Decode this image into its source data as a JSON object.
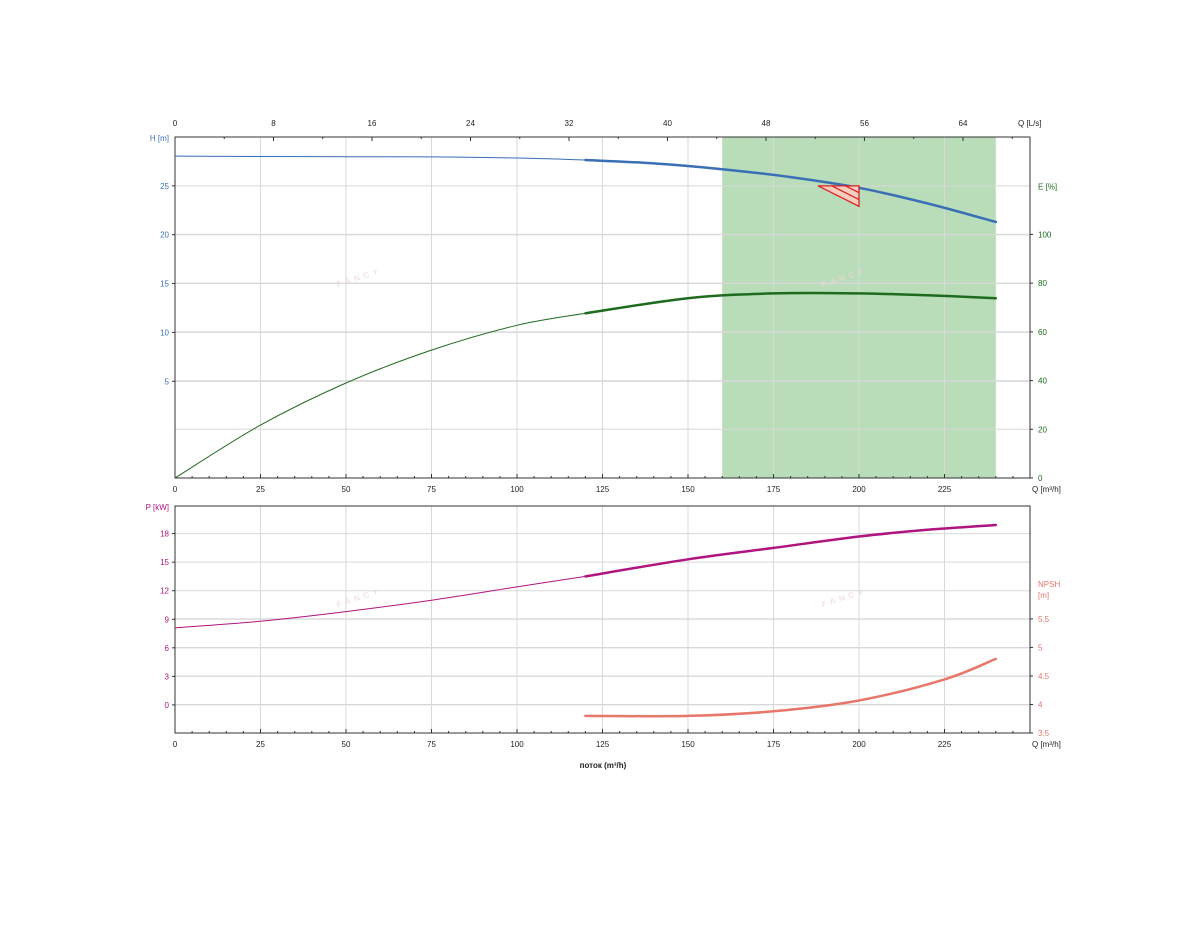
{
  "watermark": "FANCY",
  "colors": {
    "head": "#3a6fb5",
    "efficiency": "#1e6b1e",
    "power": "#b0147f",
    "npsh": "#e8766a",
    "band": "#b9dcb9",
    "operating_point": "#e02020",
    "grid": "#d8d8d8",
    "axis": "#333333"
  },
  "chart_data": [
    {
      "type": "line",
      "panel": "top",
      "xlabel": "Q [m³/h]",
      "xlim": [
        0,
        250
      ],
      "xticks": [
        0,
        25,
        50,
        75,
        100,
        125,
        150,
        175,
        200,
        225
      ],
      "x2label": "Q [L/s]",
      "x2ticks": [
        0,
        8,
        16,
        24,
        32,
        40,
        48,
        56,
        64
      ],
      "ylabel": "H [m]",
      "ylim": [
        -4.9,
        30
      ],
      "yticks": [
        5,
        10,
        15,
        20,
        25
      ],
      "y2label": "E [%]",
      "y2lim": [
        0,
        140
      ],
      "y2ticks": [
        0,
        20,
        40,
        60,
        80,
        100
      ],
      "grid": true,
      "recommended_range": [
        160,
        240
      ],
      "operating_point": {
        "q": 200,
        "h": 25,
        "q_min": 188,
        "h_min": 22.9
      },
      "series": [
        {
          "key": "head",
          "axis": "left",
          "x": [
            0,
            25,
            50,
            75,
            100,
            120,
            140,
            160,
            180,
            200,
            220,
            240
          ],
          "y": [
            28.05,
            28.0,
            27.98,
            27.96,
            27.85,
            27.65,
            27.3,
            26.7,
            25.9,
            24.8,
            23.2,
            21.3
          ],
          "thin_until": 120
        },
        {
          "key": "efficiency",
          "axis": "right",
          "x": [
            0,
            25,
            50,
            75,
            100,
            120,
            150,
            175,
            200,
            220,
            240
          ],
          "y": [
            0,
            21.7,
            39,
            52.5,
            62.7,
            67.6,
            73.8,
            75.8,
            75.8,
            75,
            73.8
          ],
          "thin_until": 120
        }
      ]
    },
    {
      "type": "line",
      "panel": "bottom",
      "xlabel": "Q [m³/h]",
      "title_below": "поток (m³/h)",
      "xlim": [
        0,
        250
      ],
      "xticks": [
        0,
        25,
        50,
        75,
        100,
        125,
        150,
        175,
        200,
        225
      ],
      "ylabel": "P [kW]",
      "ylim": [
        -2.95,
        20.9
      ],
      "yticks": [
        0,
        3,
        6,
        9,
        12,
        15,
        18
      ],
      "y2label": "NPSH [m]",
      "y2label_lines": [
        "NPSH",
        "[m]"
      ],
      "y2lim": [
        3.5,
        7.48
      ],
      "y2ticks": [
        3.5,
        4,
        4.5,
        5,
        5.5
      ],
      "grid": true,
      "series": [
        {
          "key": "power",
          "axis": "left",
          "x": [
            0,
            25,
            50,
            75,
            100,
            120,
            150,
            175,
            200,
            220,
            240
          ],
          "y": [
            8.1,
            8.8,
            9.8,
            11.0,
            12.4,
            13.5,
            15.3,
            16.5,
            17.7,
            18.4,
            18.9
          ],
          "thin_until": 120
        },
        {
          "key": "npsh",
          "axis": "right",
          "x": [
            120,
            150,
            175,
            200,
            225,
            240
          ],
          "y": [
            3.8,
            3.8,
            3.88,
            4.07,
            4.44,
            4.8
          ],
          "thin_until": 0
        }
      ]
    }
  ]
}
